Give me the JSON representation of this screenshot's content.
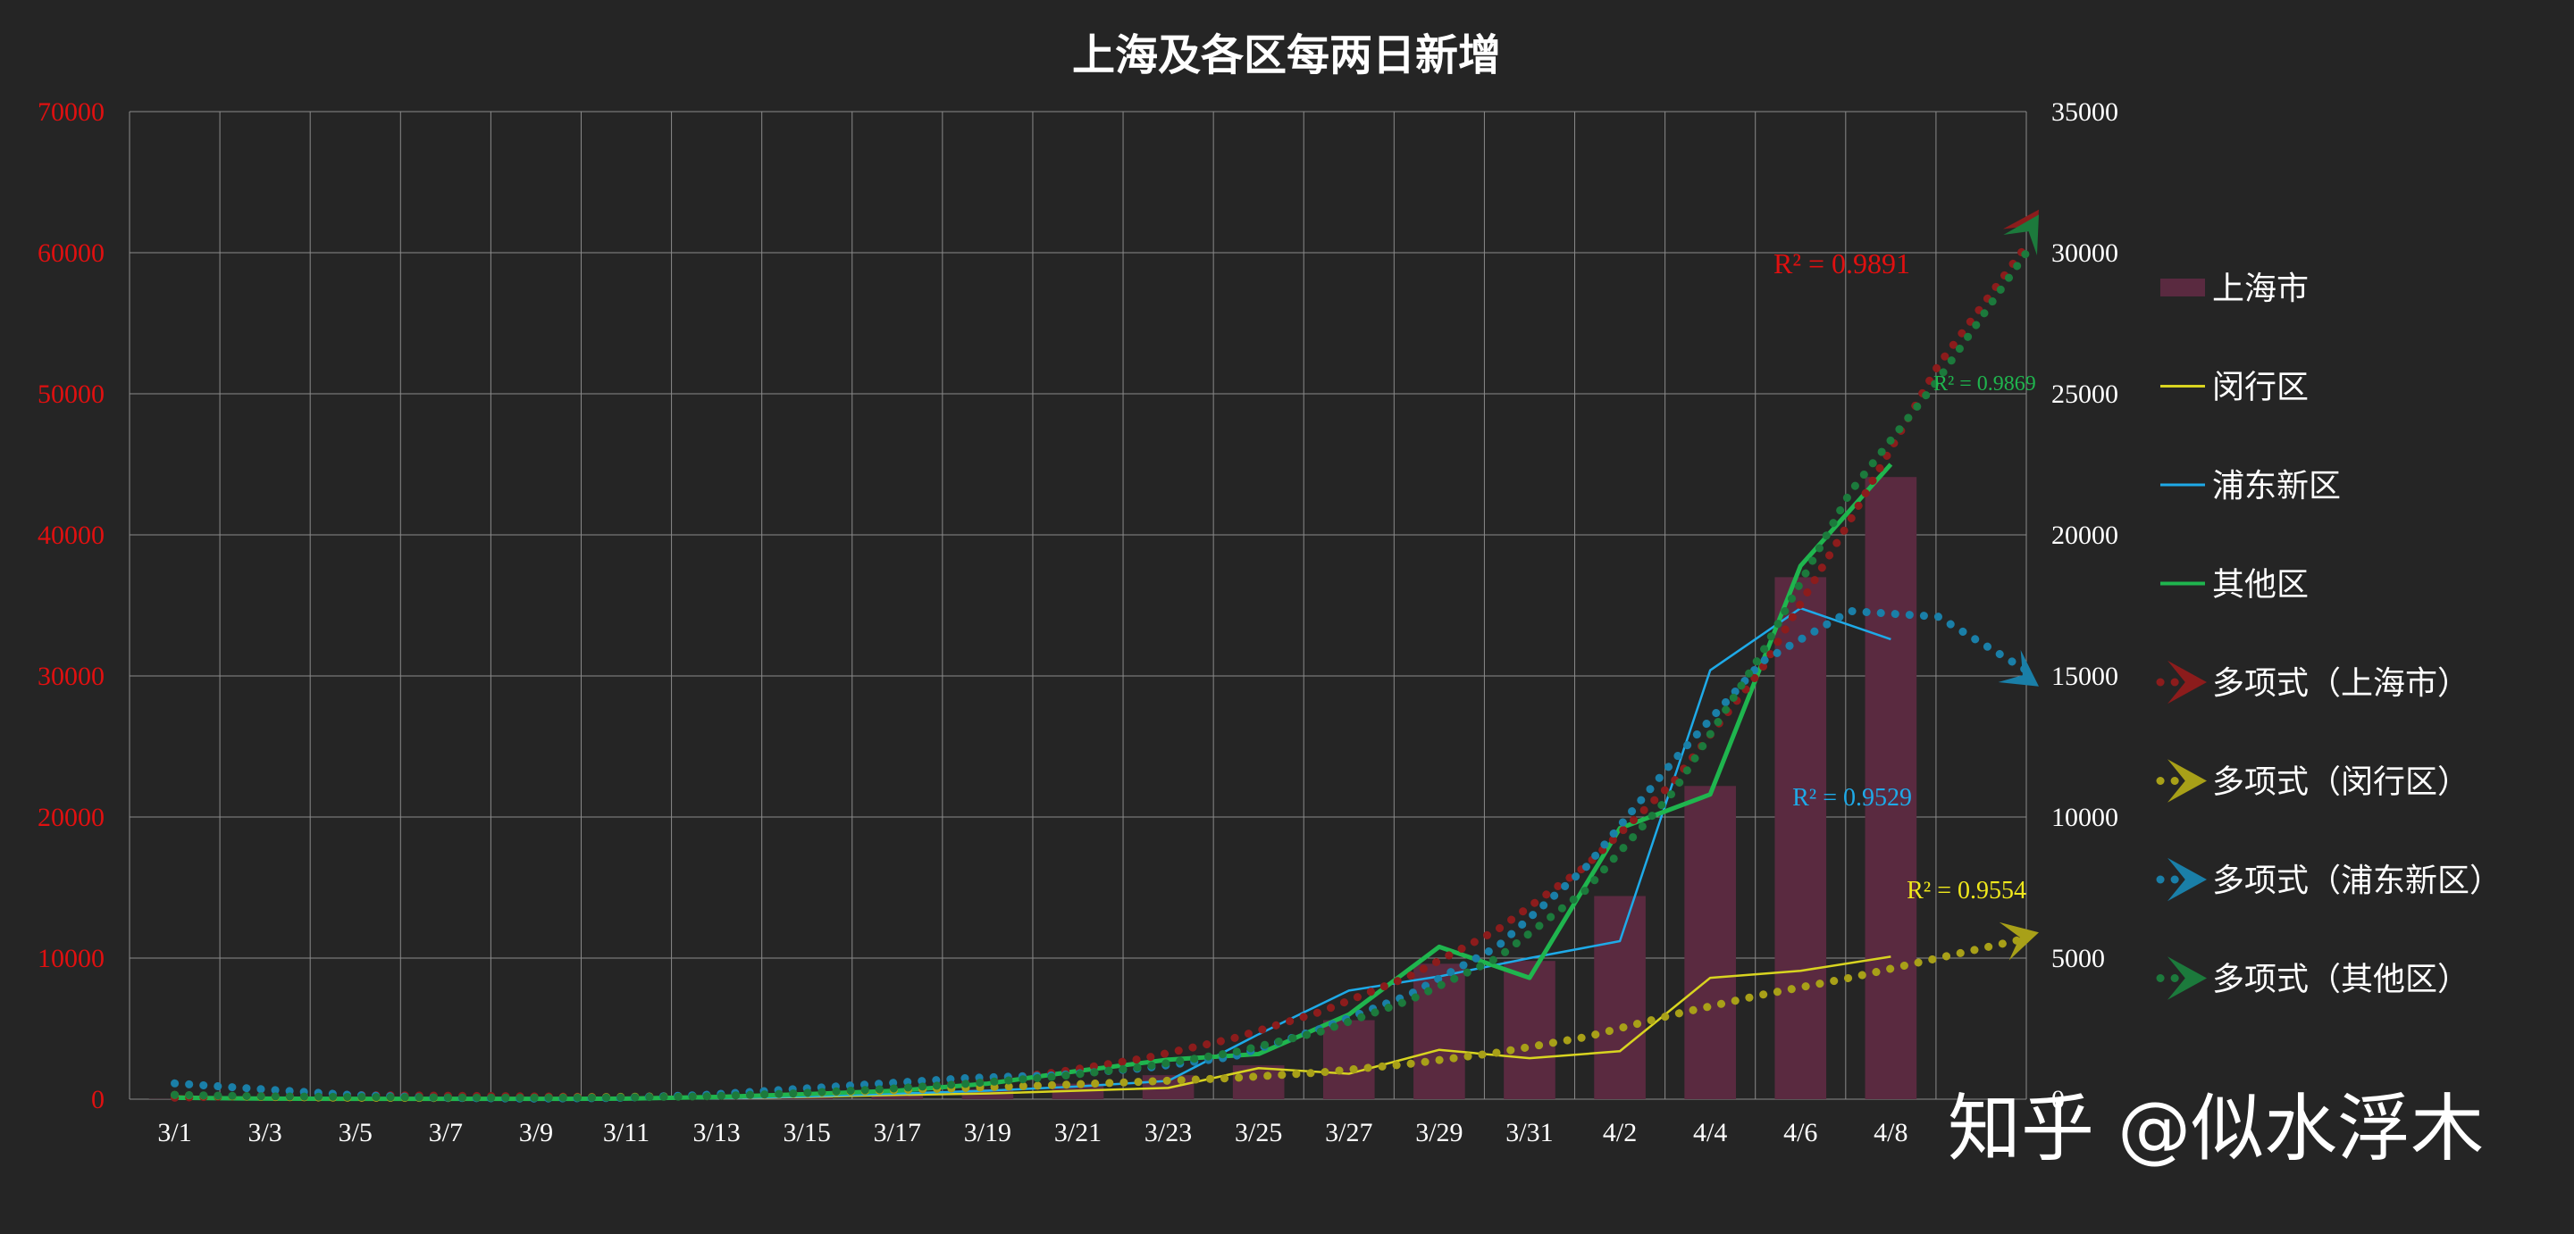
{
  "chart_data": {
    "type": "bar",
    "title": "上海及各区每两日新增",
    "categories": [
      "3/1",
      "3/3",
      "3/5",
      "3/7",
      "3/9",
      "3/11",
      "3/13",
      "3/15",
      "3/17",
      "3/19",
      "3/21",
      "3/23",
      "3/25",
      "3/27",
      "3/29",
      "3/31",
      "4/2",
      "4/4",
      "4/6",
      "4/8"
    ],
    "y_left": {
      "ticks": [
        "0",
        "10000",
        "20000",
        "30000",
        "40000",
        "50000",
        "60000",
        "70000"
      ],
      "min": 0,
      "max": 70000,
      "color": "#e01010"
    },
    "y_right": {
      "ticks": [
        "0",
        "5000",
        "10000",
        "15000",
        "20000",
        "25000",
        "30000",
        "35000"
      ],
      "min": 0,
      "max": 35000,
      "color": "#ffffff"
    },
    "grid": true,
    "legend_position": "right",
    "series": [
      {
        "name": "上海市",
        "kind": "bar",
        "axis": "left",
        "color": "#5a2a40",
        "values": [
          20,
          15,
          20,
          30,
          40,
          50,
          170,
          350,
          420,
          720,
          1100,
          1700,
          2400,
          5600,
          9600,
          9800,
          14400,
          22200,
          37000,
          44100
        ]
      },
      {
        "name": "闵行区",
        "kind": "line",
        "axis": "right",
        "color": "#d8d420",
        "width": 2.5,
        "values": [
          100,
          20,
          10,
          10,
          10,
          10,
          30,
          80,
          150,
          200,
          300,
          400,
          1100,
          900,
          1750,
          1450,
          1700,
          4300,
          4550,
          5050
        ]
      },
      {
        "name": "浦东新区",
        "kind": "line",
        "axis": "right",
        "color": "#1eaae8",
        "width": 2.5,
        "values": [
          20,
          5,
          5,
          5,
          5,
          10,
          30,
          100,
          200,
          300,
          450,
          650,
          2300,
          3850,
          4350,
          5000,
          5600,
          15200,
          17400,
          16300
        ]
      },
      {
        "name": "其他区",
        "kind": "line",
        "axis": "right",
        "color": "#1fb54e",
        "width": 5,
        "values": [
          50,
          20,
          10,
          10,
          10,
          20,
          80,
          180,
          300,
          550,
          1000,
          1400,
          1600,
          3000,
          5400,
          4300,
          9600,
          10800,
          18900,
          22500
        ]
      }
    ],
    "trendlines": [
      {
        "name": "多项式（上海市）",
        "type": "polynomial",
        "axis": "left",
        "color": "#8c1c1c",
        "values": [
          100,
          250,
          300,
          250,
          200,
          150,
          200,
          400,
          700,
          1200,
          1900,
          2900,
          4300,
          6200,
          8700,
          12000,
          16500,
          22500,
          30500,
          41000,
          52000,
          60500
        ],
        "r2_label": "R² = 0.9891",
        "r2_color": "#e01010"
      },
      {
        "name": "多项式（闵行区）",
        "type": "polynomial",
        "axis": "right",
        "color": "#a8a018",
        "values": [
          150,
          80,
          50,
          40,
          50,
          80,
          120,
          200,
          300,
          400,
          500,
          620,
          750,
          950,
          1250,
          1650,
          2200,
          3000,
          3700,
          4300,
          5000,
          5700
        ],
        "r2_label": "R² = 0.9554",
        "r2_color": "#f0e81c"
      },
      {
        "name": "多项式（浦东新区）",
        "type": "polynomial",
        "axis": "right",
        "color": "#1a7fa8",
        "values": [
          560,
          350,
          150,
          50,
          20,
          40,
          150,
          350,
          550,
          750,
          850,
          1100,
          1500,
          2500,
          3700,
          5400,
          8200,
          12000,
          15500,
          17300,
          17100,
          15200
        ],
        "r2_label": "R² = 0.9529",
        "r2_color": "#1eaae8"
      },
      {
        "name": "多项式（其他区）",
        "type": "polynomial",
        "axis": "right",
        "color": "#1c7a3c",
        "values": [
          150,
          100,
          80,
          60,
          50,
          60,
          100,
          200,
          350,
          550,
          800,
          1150,
          1650,
          2400,
          3500,
          5000,
          7400,
          10900,
          15800,
          21500,
          25500,
          30000
        ],
        "r2_label": "R² = 0.9869",
        "r2_color": "#1fb54e"
      }
    ]
  },
  "watermark": "知乎 @似水浮木"
}
